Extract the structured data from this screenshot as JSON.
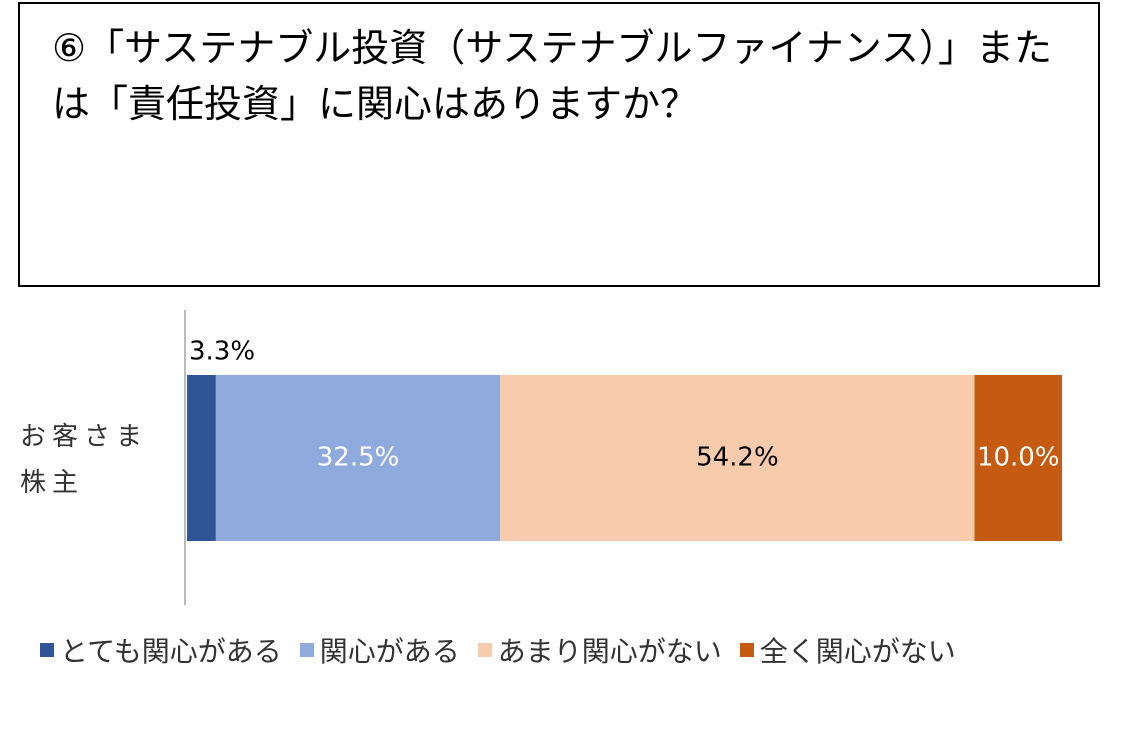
{
  "chart_data": {
    "type": "stacked-bar-horizontal",
    "title": "⑥「サステナブル投資（サステナブルファイナンス）」または「責任投資」に関心はありますか？",
    "categories": [
      "お客さま株主"
    ],
    "xlim": [
      0,
      100
    ],
    "series": [
      {
        "name": "とても関心がある",
        "color": "#2f5597",
        "values": [
          3.3
        ],
        "value_labels": [
          "3.3%"
        ]
      },
      {
        "name": "関心がある",
        "color": "#8faadc",
        "values": [
          32.5
        ],
        "value_labels": [
          "32.5%"
        ]
      },
      {
        "name": "あまり関心がない",
        "color": "#f8cbad",
        "values": [
          54.2
        ],
        "value_labels": [
          "54.2%"
        ]
      },
      {
        "name": "全く関心がない",
        "color": "#c55a11",
        "values": [
          10.0
        ],
        "value_labels": [
          "10.0%"
        ]
      }
    ],
    "legend": "bottom"
  }
}
